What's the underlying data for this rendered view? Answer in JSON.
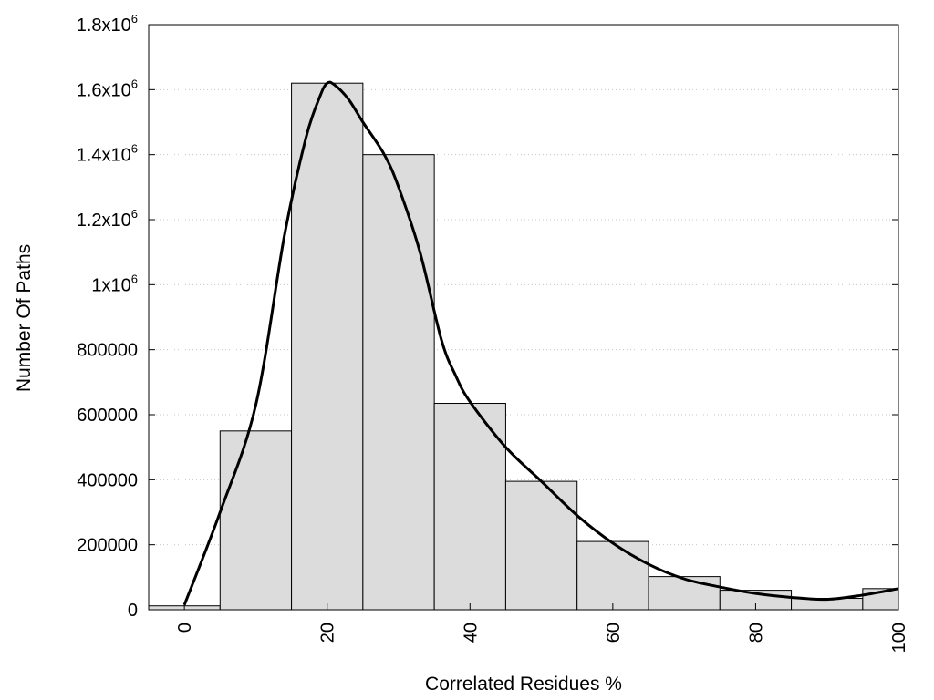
{
  "chart_data": {
    "type": "bar",
    "xlabel": "Correlated Residues %",
    "ylabel": "Number Of Paths",
    "xlim": [
      -5,
      100
    ],
    "ylim": [
      0,
      1800000
    ],
    "bin_width": 10,
    "bins": [
      {
        "center": 0,
        "value": 12000
      },
      {
        "center": 10,
        "value": 550000
      },
      {
        "center": 20,
        "value": 1620000
      },
      {
        "center": 30,
        "value": 1400000
      },
      {
        "center": 40,
        "value": 635000
      },
      {
        "center": 50,
        "value": 395000
      },
      {
        "center": 60,
        "value": 210000
      },
      {
        "center": 70,
        "value": 102000
      },
      {
        "center": 80,
        "value": 60000
      },
      {
        "center": 90,
        "value": 35000
      },
      {
        "center": 100,
        "value": 65000
      }
    ],
    "density_curve": {
      "x": [
        0,
        5,
        10,
        14,
        17,
        19,
        20,
        21,
        23,
        25,
        28,
        30,
        33,
        36,
        38,
        40,
        45,
        50,
        55,
        60,
        65,
        70,
        75,
        80,
        85,
        90,
        95,
        100
      ],
      "y": [
        15000,
        300000,
        630000,
        1150000,
        1450000,
        1580000,
        1620000,
        1615000,
        1570000,
        1500000,
        1400000,
        1300000,
        1100000,
        830000,
        720000,
        640000,
        500000,
        395000,
        290000,
        205000,
        140000,
        95000,
        70000,
        50000,
        38000,
        32000,
        45000,
        65000
      ]
    },
    "x_ticks": [
      {
        "value": 0,
        "label": "0"
      },
      {
        "value": 20,
        "label": "20"
      },
      {
        "value": 40,
        "label": "40"
      },
      {
        "value": 60,
        "label": "60"
      },
      {
        "value": 80,
        "label": "80"
      },
      {
        "value": 100,
        "label": "100"
      }
    ],
    "y_ticks": [
      {
        "value": 0,
        "base": "0",
        "exp": ""
      },
      {
        "value": 200000,
        "base": "200000",
        "exp": ""
      },
      {
        "value": 400000,
        "base": "400000",
        "exp": ""
      },
      {
        "value": 600000,
        "base": "600000",
        "exp": ""
      },
      {
        "value": 800000,
        "base": "800000",
        "exp": ""
      },
      {
        "value": 1000000,
        "base": "1x10",
        "exp": "6"
      },
      {
        "value": 1200000,
        "base": "1.2x10",
        "exp": "6"
      },
      {
        "value": 1400000,
        "base": "1.4x10",
        "exp": "6"
      },
      {
        "value": 1600000,
        "base": "1.6x10",
        "exp": "6"
      },
      {
        "value": 1800000,
        "base": "1.8x10",
        "exp": "6"
      }
    ],
    "grid": "horizontal-dotted",
    "colors": {
      "bar_fill": "#dcdcdc",
      "bar_stroke": "#000000",
      "curve": "#000000",
      "grid": "#c8c8c8"
    }
  }
}
